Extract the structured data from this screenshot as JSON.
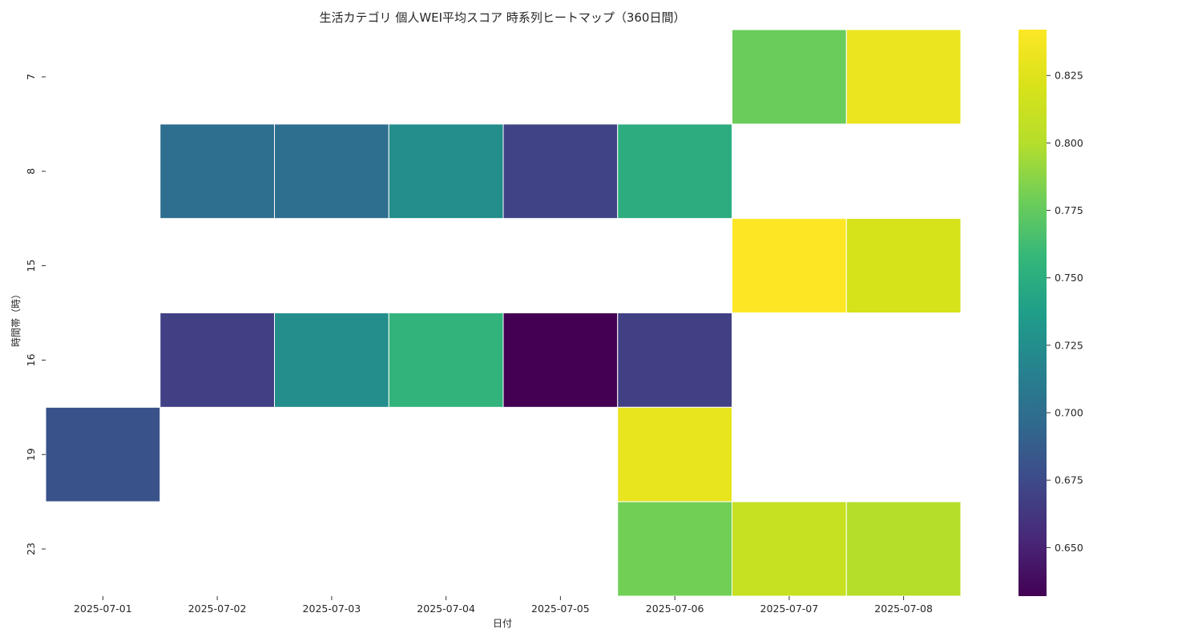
{
  "chart_data": {
    "type": "heatmap",
    "title": "生活カテゴリ 個人WEI平均スコア 時系列ヒートマップ（360日間）",
    "xlabel": "日付",
    "ylabel": "時間帯（時）",
    "x_categories": [
      "2025-07-01",
      "2025-07-02",
      "2025-07-03",
      "2025-07-04",
      "2025-07-05",
      "2025-07-06",
      "2025-07-07",
      "2025-07-08"
    ],
    "y_categories": [
      "7",
      "8",
      "15",
      "16",
      "19",
      "23"
    ],
    "values": [
      [
        null,
        null,
        null,
        null,
        null,
        null,
        0.777,
        0.832
      ],
      [
        null,
        0.7,
        0.7,
        0.725,
        0.67,
        0.75,
        null,
        null
      ],
      [
        null,
        null,
        null,
        null,
        null,
        null,
        0.842,
        0.82
      ],
      [
        null,
        0.668,
        0.725,
        0.755,
        0.632,
        0.668,
        null,
        null
      ],
      [
        0.68,
        null,
        null,
        null,
        null,
        0.83,
        null,
        null
      ],
      [
        null,
        null,
        null,
        null,
        null,
        0.78,
        0.81,
        0.8
      ]
    ],
    "colormap": "viridis",
    "color_range": [
      0.632,
      0.842
    ],
    "colorbar_ticks": [
      "0.650",
      "0.675",
      "0.700",
      "0.725",
      "0.750",
      "0.775",
      "0.800",
      "0.825"
    ],
    "missing_color": "#ffffff",
    "grid": false,
    "legend": "colorbar-right"
  }
}
